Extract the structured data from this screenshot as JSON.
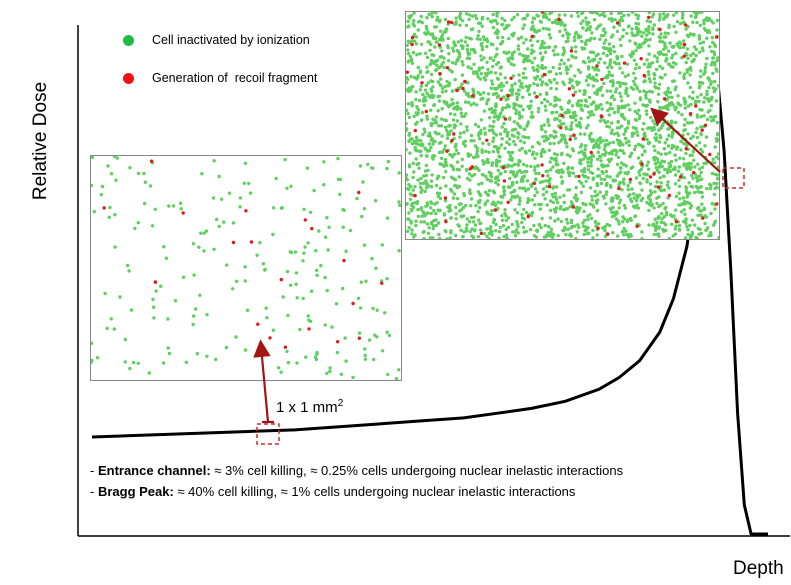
{
  "chart_data": {
    "type": "line",
    "xlabel": "Depth",
    "ylabel": "Relative Dose",
    "grid": false,
    "legend_placement": "top-left",
    "series": [
      {
        "x": [
          0,
          0.1,
          0.2,
          0.3,
          0.4,
          0.5,
          0.55,
          0.6,
          0.65,
          0.7,
          0.75,
          0.78,
          0.81,
          0.84,
          0.86,
          0.88,
          0.895,
          0.905,
          0.915,
          0.925,
          0.935,
          0.945,
          0.955,
          0.965,
          0.975,
          1.0
        ],
        "values": [
          0.2,
          0.205,
          0.21,
          0.215,
          0.225,
          0.235,
          0.24,
          0.25,
          0.26,
          0.275,
          0.3,
          0.325,
          0.36,
          0.42,
          0.49,
          0.6,
          0.75,
          0.9,
          0.97,
          0.96,
          0.8,
          0.55,
          0.25,
          0.06,
          0.0,
          0.0
        ],
        "color": "#000000"
      }
    ],
    "legend": [
      {
        "label": "Cell inactivated by ionization",
        "color": "#22bb44"
      },
      {
        "label": "Generation of  recoil fragment",
        "color": "#ee1111"
      }
    ],
    "annotations": {
      "scale": "1 x 1 mm",
      "scale_sup": "2",
      "notes": [
        {
          "prefix": "- ",
          "bold": "Entrance channel:",
          "text": " ≈ 3% cell killing, ≈ 0.25% cells undergoing nuclear inelastic interactions"
        },
        {
          "prefix": "- ",
          "bold": "Bragg Peak:",
          "text": " ≈ 40% cell killing, ≈ 1% cells undergoing nuclear inelastic interactions"
        }
      ]
    },
    "insets": [
      {
        "region": "entrance channel",
        "inactivated_fraction": 0.03,
        "recoil_fraction": 0.0025
      },
      {
        "region": "Bragg peak",
        "inactivated_fraction": 0.4,
        "recoil_fraction": 0.01
      }
    ],
    "colors": {
      "inactivated": "#5fcf5f",
      "recoil": "#e01b1b",
      "arrow": "#a31515",
      "marker_box": "#d42a2a"
    }
  }
}
